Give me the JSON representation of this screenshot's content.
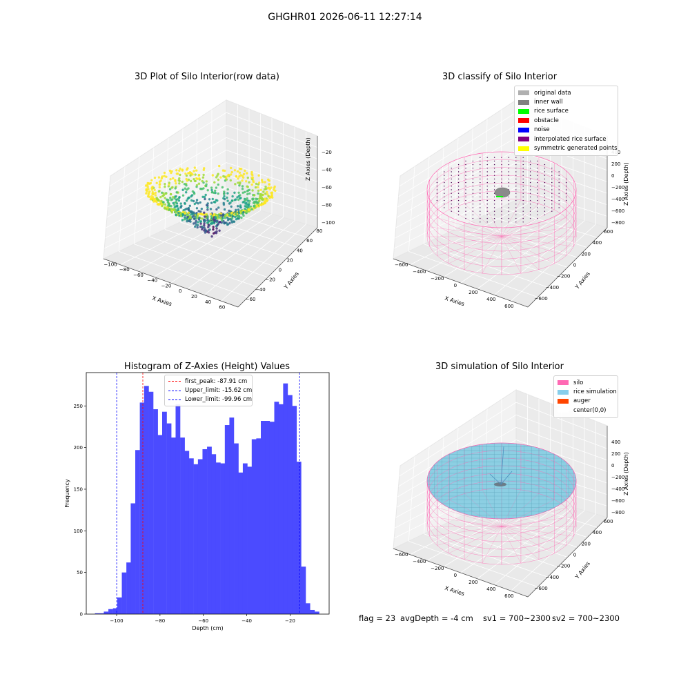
{
  "suptitle": "GHGHR01 2026-06-11 12:27:14",
  "panels": {
    "raw": {
      "title": "3D Plot of Silo Interior(row data)",
      "xlabel": "X Axies",
      "ylabel": "Y Axies",
      "zlabel": "Z Axies (Depth)",
      "xticks": [
        "−100",
        "−80",
        "−60",
        "−40",
        "−20",
        "0",
        "20",
        "40",
        "60"
      ],
      "yticks": [
        "−60",
        "−40",
        "−20",
        "0",
        "20",
        "40",
        "60",
        "80"
      ],
      "zticks": [
        "−20",
        "−40",
        "−60",
        "−80",
        "−100"
      ]
    },
    "classify": {
      "title": "3D classify of Silo Interior",
      "xlabel": "X Axies",
      "ylabel": "Y Axies",
      "zlabel": "Z Axies (Depth)",
      "xticks": [
        "−600",
        "−400",
        "−200",
        "0",
        "200",
        "400",
        "600"
      ],
      "yticks": [
        "−600",
        "−400",
        "−200",
        "0",
        "200",
        "400",
        "600"
      ],
      "zticks": [
        "200",
        "0",
        "−200",
        "−400",
        "−600",
        "−800"
      ],
      "ztick_top": "400",
      "legend": [
        {
          "label": "original data",
          "color": "#b0b0b0"
        },
        {
          "label": "inner wall",
          "color": "#808080"
        },
        {
          "label": "rice surface",
          "color": "#00ff00"
        },
        {
          "label": "obstacle",
          "color": "#ff0000"
        },
        {
          "label": "noise",
          "color": "#0000ff"
        },
        {
          "label": "interpolated rice surface",
          "color": "#800080"
        },
        {
          "label": "symmetric generated points",
          "color": "#ffff00"
        }
      ]
    },
    "histogram": {
      "title": "Histogram of Z-Axies (Height) Values",
      "legend": [
        {
          "label": "first_peak: -87.91 cm",
          "color": "#ff0000"
        },
        {
          "label": "Upper_limit: -15.62 cm",
          "color": "#0000ff"
        },
        {
          "label": "Lower_limit: -99.96 cm",
          "color": "#0000ff"
        }
      ]
    },
    "simulation": {
      "title": "3D simulation of Silo Interior",
      "xlabel": "X Axies",
      "ylabel": "Y Axies",
      "zlabel": "Z Axies (Depth)",
      "xticks": [
        "−600",
        "−400",
        "−200",
        "0",
        "200",
        "400",
        "600"
      ],
      "yticks": [
        "−600",
        "−400",
        "−200",
        "0",
        "200",
        "400",
        "600"
      ],
      "zticks": [
        "400",
        "200",
        "0",
        "−200",
        "−400",
        "−600",
        "−800"
      ],
      "legend": [
        {
          "label": "silo",
          "color": "#ff69b4"
        },
        {
          "label": "rice simulation",
          "color": "#87ceeb"
        },
        {
          "label": "auger",
          "color": "#ff4500"
        },
        {
          "label": "center(0,0)",
          "color": "#ffffff"
        }
      ]
    }
  },
  "footer": {
    "flag": "flag = 23",
    "avg_depth": "avgDepth = -4 cm",
    "sv1": "sv1 = 700~2300",
    "sv2": "sv2 = 700~2300"
  },
  "chart_data": {
    "type": "bar",
    "title": "Histogram of Z-Axies (Height) Values",
    "xlabel": "Depth (cm)",
    "ylabel": "Frequency",
    "xlim": [
      -114,
      -2
    ],
    "ylim": [
      0,
      290
    ],
    "xticks": [
      -100,
      -80,
      -60,
      -40,
      -20
    ],
    "yticks": [
      0,
      50,
      100,
      150,
      200,
      250
    ],
    "bar_color": "#4b4bff",
    "bin_width": 2.07,
    "bins": [
      [
        -110.0,
        1
      ],
      [
        -107.9,
        1
      ],
      [
        -105.9,
        3
      ],
      [
        -103.8,
        6
      ],
      [
        -101.7,
        7
      ],
      [
        -99.7,
        20
      ],
      [
        -97.6,
        50
      ],
      [
        -95.5,
        62
      ],
      [
        -93.5,
        133
      ],
      [
        -91.4,
        197
      ],
      [
        -89.3,
        254
      ],
      [
        -87.3,
        274
      ],
      [
        -85.2,
        267
      ],
      [
        -83.1,
        246
      ],
      [
        -81.1,
        215
      ],
      [
        -79.0,
        243
      ],
      [
        -76.9,
        229
      ],
      [
        -74.9,
        212
      ],
      [
        -72.8,
        252
      ],
      [
        -70.7,
        212
      ],
      [
        -68.7,
        196
      ],
      [
        -66.6,
        187
      ],
      [
        -64.5,
        180
      ],
      [
        -62.5,
        186
      ],
      [
        -60.4,
        198
      ],
      [
        -58.3,
        201
      ],
      [
        -56.3,
        192
      ],
      [
        -54.2,
        182
      ],
      [
        -52.1,
        181
      ],
      [
        -50.1,
        227
      ],
      [
        -48.0,
        236
      ],
      [
        -45.9,
        205
      ],
      [
        -43.9,
        170
      ],
      [
        -41.8,
        181
      ],
      [
        -39.7,
        177
      ],
      [
        -37.7,
        210
      ],
      [
        -35.6,
        211
      ],
      [
        -33.5,
        232
      ],
      [
        -31.5,
        232
      ],
      [
        -29.4,
        231
      ],
      [
        -27.3,
        255
      ],
      [
        -25.3,
        252
      ],
      [
        -23.2,
        277
      ],
      [
        -21.1,
        263
      ],
      [
        -19.1,
        250
      ],
      [
        -17.0,
        183
      ],
      [
        -14.9,
        57
      ],
      [
        -12.9,
        13
      ],
      [
        -10.8,
        5
      ],
      [
        -8.7,
        3
      ]
    ],
    "vlines": [
      {
        "name": "first_peak",
        "x": -87.91,
        "color": "#ff0000"
      },
      {
        "name": "Upper_limit",
        "x": -15.62,
        "color": "#0000ff"
      },
      {
        "name": "Lower_limit",
        "x": -99.96,
        "color": "#0000ff"
      }
    ]
  }
}
